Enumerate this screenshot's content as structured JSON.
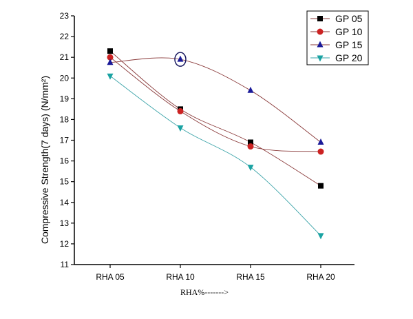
{
  "chart_data": {
    "type": "line",
    "title": "",
    "xlabel": "RHA%------->",
    "ylabel": "Compressive Strength(7 days) (N/mm²)",
    "categories": [
      "RHA 05",
      "RHA 10",
      "RHA 15",
      "RHA 20"
    ],
    "ylim": [
      11,
      23
    ],
    "yticks": [
      11,
      12,
      13,
      14,
      15,
      16,
      17,
      18,
      19,
      20,
      21,
      22,
      23
    ],
    "grid": false,
    "legend_position": "top-right",
    "series": [
      {
        "name": "GP 05",
        "values": [
          21.3,
          18.5,
          16.9,
          14.8
        ],
        "color": "#000000",
        "marker": "square",
        "line_color": "#8a3a3a"
      },
      {
        "name": "GP 10",
        "values": [
          21.0,
          18.4,
          16.7,
          16.45
        ],
        "color": "#cc2222",
        "marker": "circle",
        "line_color": "#8a3a3a"
      },
      {
        "name": "GP 15",
        "values": [
          20.75,
          20.9,
          19.4,
          16.9
        ],
        "color": "#1a1a99",
        "marker": "triangle-up",
        "line_color": "#8a3a3a"
      },
      {
        "name": "GP 20",
        "values": [
          20.1,
          17.6,
          15.7,
          12.4
        ],
        "color": "#1aa3a3",
        "marker": "triangle-down",
        "line_color": "#3aa3a8"
      }
    ],
    "annotations": [
      {
        "type": "circle-highlight",
        "series": "GP 15",
        "category": "RHA 10"
      }
    ]
  }
}
